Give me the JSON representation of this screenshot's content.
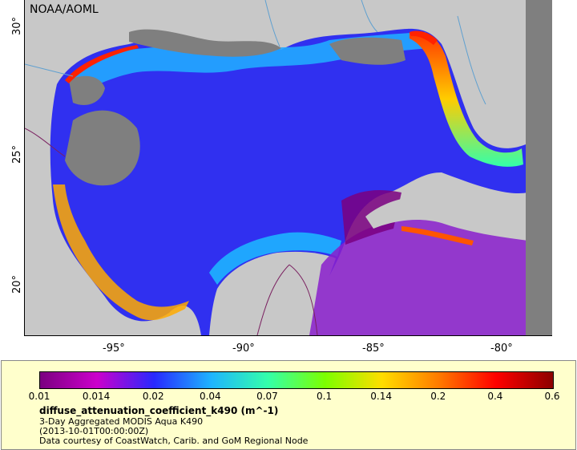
{
  "map": {
    "credit": "NOAA/AOML",
    "lat_ticks": [
      "30°",
      "25°",
      "20°"
    ],
    "lon_ticks": [
      "-95°",
      "-90°",
      "-85°",
      "-80°"
    ]
  },
  "legend": {
    "title": "diffuse_attenuation_coefficient_k490 (m^-1)",
    "line1": "3-Day Aggregated MODIS Aqua K490",
    "line2": "(2013-10-01T00:00:00Z)",
    "line3": "Data courtesy of CoastWatch, Carib. and GoM Regional Node",
    "scale_labels": [
      "0.01",
      "0.014",
      "0.02",
      "0.04",
      "0.07",
      "0.1",
      "0.14",
      "0.2",
      "0.4",
      "0.6"
    ],
    "colors": [
      "#7a0080",
      "#cc00cc",
      "#2828ff",
      "#1eb4ff",
      "#33ffaa",
      "#7cff00",
      "#ffdd00",
      "#ff7a00",
      "#ff0000",
      "#8c0000"
    ]
  },
  "colors": {
    "land": "#c8c8c8",
    "nodata": "#7f7f7f",
    "ocean_deep": "#3232ff",
    "legend_bg": "#ffffcc"
  }
}
